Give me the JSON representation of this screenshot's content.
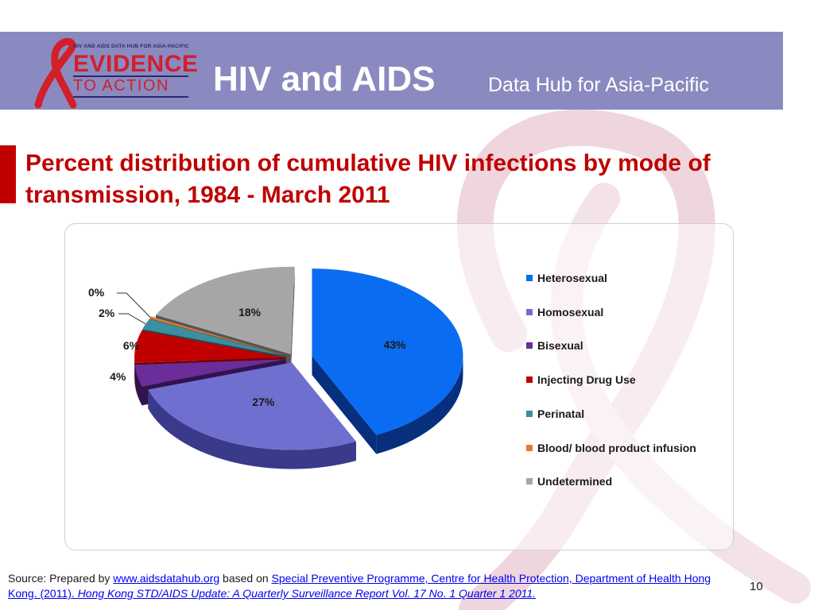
{
  "header": {
    "logo_tagline": "HIV AND AIDS DATA HUB FOR ASIA-PACIFIC",
    "logo_evidence": "EVIDENCE",
    "logo_to_action": "TO ACTION",
    "title": "HIV and AIDS",
    "subtitle": "Data Hub for Asia-Pacific",
    "colors": {
      "banner": "#8a8ac0",
      "brand_red": "#d21f2a",
      "title_red": "#c00000"
    }
  },
  "slide": {
    "title": "Percent distribution of cumulative HIV infections by mode of transmission, 1984 - March 2011",
    "page_number": "10"
  },
  "chart_data": {
    "type": "pie",
    "style": "3d-exploded",
    "title": "",
    "legend_position": "right",
    "categories": [
      "Heterosexual",
      "Homosexual",
      "Bisexual",
      "Injecting Drug Use",
      "Perinatal",
      "Blood/ blood product infusion",
      "Undetermined"
    ],
    "values": [
      43,
      27,
      4,
      6,
      2,
      0,
      18
    ],
    "labels": [
      "43%",
      "27%",
      "4%",
      "6%",
      "2%",
      "0%",
      "18%"
    ],
    "colors": [
      "#0a6cf0",
      "#6f6fcf",
      "#6a2d9a",
      "#c00000",
      "#3a8fa0",
      "#e07a3a",
      "#a6a6a6"
    ],
    "side_colors": [
      "#062f7e",
      "#3a3a8a",
      "#33124d",
      "#6b0000",
      "#1c4f59",
      "#7a3a10",
      "#555555"
    ]
  },
  "source": {
    "prefix": "Source: Prepared by ",
    "link1": "www.aidsdatahub.org",
    "middle": "  based on ",
    "link2": "Special Preventive Programme, Centre for Health Protection, Department of Health Hong Kong. (2011). ",
    "link3": "Hong Kong STD/AIDS Update: A Quarterly Surveillance Report Vol. 17 No. 1 Quarter 1 2011."
  }
}
